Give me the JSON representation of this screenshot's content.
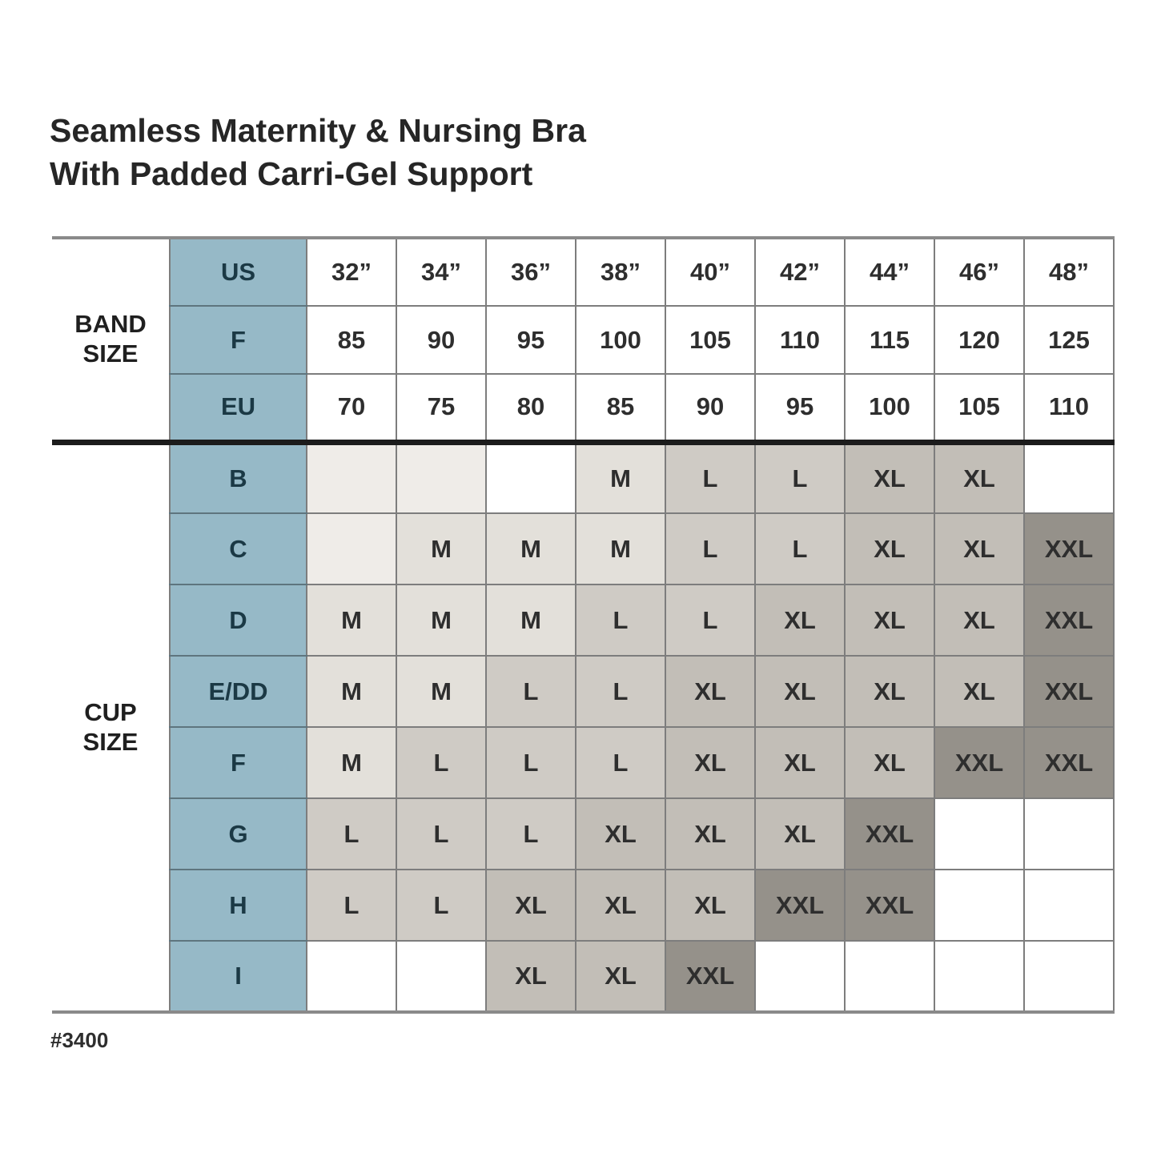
{
  "page_title": {
    "line1": "Seamless Maternity & Nursing Bra",
    "line2": "With Padded Carri-Gel Support"
  },
  "footnote": "#3400",
  "colors": {
    "header_blue": "#96B9C7",
    "header_blue_text": "#1B3945",
    "grid_line": "#7D7D7D",
    "blue_divider": "#5E757E",
    "thick_separator": "#1C1C1C",
    "outer_border": "#8A8A8A",
    "cell_text": "#2E2E2E",
    "cell_shades": {
      "empty": "#EFECE8",
      "white": "#FFFFFF",
      "M": "#E3E0DA",
      "L": "#CFCBC5",
      "XL": "#C2BEB7",
      "XXL": "#95918A"
    }
  },
  "chart_data": {
    "type": "table",
    "title": "Seamless Maternity & Nursing Bra With Padded Carri-Gel Support",
    "row_group_labels": {
      "band": [
        "BAND",
        "SIZE"
      ],
      "cup": [
        "CUP",
        "SIZE"
      ]
    },
    "band_rows": [
      {
        "label": "US",
        "values": [
          "32”",
          "34”",
          "36”",
          "38”",
          "40”",
          "42”",
          "44”",
          "46”",
          "48”"
        ]
      },
      {
        "label": "F",
        "values": [
          "85",
          "90",
          "95",
          "100",
          "105",
          "110",
          "115",
          "120",
          "125"
        ]
      },
      {
        "label": "EU",
        "values": [
          "70",
          "75",
          "80",
          "85",
          "90",
          "95",
          "100",
          "105",
          "110"
        ]
      }
    ],
    "cup_rows": [
      {
        "label": "B",
        "cells": [
          {
            "v": "",
            "bg": "empty"
          },
          {
            "v": "",
            "bg": "empty"
          },
          {
            "v": "",
            "bg": "white"
          },
          {
            "v": "M",
            "bg": "M"
          },
          {
            "v": "L",
            "bg": "L"
          },
          {
            "v": "L",
            "bg": "L"
          },
          {
            "v": "XL",
            "bg": "XL"
          },
          {
            "v": "XL",
            "bg": "XL"
          },
          {
            "v": "",
            "bg": "white"
          }
        ]
      },
      {
        "label": "C",
        "cells": [
          {
            "v": "",
            "bg": "empty"
          },
          {
            "v": "M",
            "bg": "M"
          },
          {
            "v": "M",
            "bg": "M"
          },
          {
            "v": "M",
            "bg": "M"
          },
          {
            "v": "L",
            "bg": "L"
          },
          {
            "v": "L",
            "bg": "L"
          },
          {
            "v": "XL",
            "bg": "XL"
          },
          {
            "v": "XL",
            "bg": "XL"
          },
          {
            "v": "XXL",
            "bg": "XXL"
          }
        ]
      },
      {
        "label": "D",
        "cells": [
          {
            "v": "M",
            "bg": "M"
          },
          {
            "v": "M",
            "bg": "M"
          },
          {
            "v": "M",
            "bg": "M"
          },
          {
            "v": "L",
            "bg": "L"
          },
          {
            "v": "L",
            "bg": "L"
          },
          {
            "v": "XL",
            "bg": "XL"
          },
          {
            "v": "XL",
            "bg": "XL"
          },
          {
            "v": "XL",
            "bg": "XL"
          },
          {
            "v": "XXL",
            "bg": "XXL"
          }
        ]
      },
      {
        "label": "E/DD",
        "cells": [
          {
            "v": "M",
            "bg": "M"
          },
          {
            "v": "M",
            "bg": "M"
          },
          {
            "v": "L",
            "bg": "L"
          },
          {
            "v": "L",
            "bg": "L"
          },
          {
            "v": "XL",
            "bg": "XL"
          },
          {
            "v": "XL",
            "bg": "XL"
          },
          {
            "v": "XL",
            "bg": "XL"
          },
          {
            "v": "XL",
            "bg": "XL"
          },
          {
            "v": "XXL",
            "bg": "XXL"
          }
        ]
      },
      {
        "label": "F",
        "cells": [
          {
            "v": "M",
            "bg": "M"
          },
          {
            "v": "L",
            "bg": "L"
          },
          {
            "v": "L",
            "bg": "L"
          },
          {
            "v": "L",
            "bg": "L"
          },
          {
            "v": "XL",
            "bg": "XL"
          },
          {
            "v": "XL",
            "bg": "XL"
          },
          {
            "v": "XL",
            "bg": "XL"
          },
          {
            "v": "XXL",
            "bg": "XXL"
          },
          {
            "v": "XXL",
            "bg": "XXL"
          }
        ]
      },
      {
        "label": "G",
        "cells": [
          {
            "v": "L",
            "bg": "L"
          },
          {
            "v": "L",
            "bg": "L"
          },
          {
            "v": "L",
            "bg": "L"
          },
          {
            "v": "XL",
            "bg": "XL"
          },
          {
            "v": "XL",
            "bg": "XL"
          },
          {
            "v": "XL",
            "bg": "XL"
          },
          {
            "v": "XXL",
            "bg": "XXL"
          },
          {
            "v": "",
            "bg": "white"
          },
          {
            "v": "",
            "bg": "white"
          }
        ]
      },
      {
        "label": "H",
        "cells": [
          {
            "v": "L",
            "bg": "L"
          },
          {
            "v": "L",
            "bg": "L"
          },
          {
            "v": "XL",
            "bg": "XL"
          },
          {
            "v": "XL",
            "bg": "XL"
          },
          {
            "v": "XL",
            "bg": "XL"
          },
          {
            "v": "XXL",
            "bg": "XXL"
          },
          {
            "v": "XXL",
            "bg": "XXL"
          },
          {
            "v": "",
            "bg": "white"
          },
          {
            "v": "",
            "bg": "white"
          }
        ]
      },
      {
        "label": "I",
        "cells": [
          {
            "v": "",
            "bg": "white"
          },
          {
            "v": "",
            "bg": "white"
          },
          {
            "v": "XL",
            "bg": "XL"
          },
          {
            "v": "XL",
            "bg": "XL"
          },
          {
            "v": "XXL",
            "bg": "XXL"
          },
          {
            "v": "",
            "bg": "white"
          },
          {
            "v": "",
            "bg": "white"
          },
          {
            "v": "",
            "bg": "white"
          },
          {
            "v": "",
            "bg": "white"
          }
        ]
      }
    ],
    "layout": {
      "label_col_width": 147,
      "blue_col_width": 171,
      "data_col_width": 112,
      "band_row_height": 85,
      "cup_row_height": 89
    }
  }
}
